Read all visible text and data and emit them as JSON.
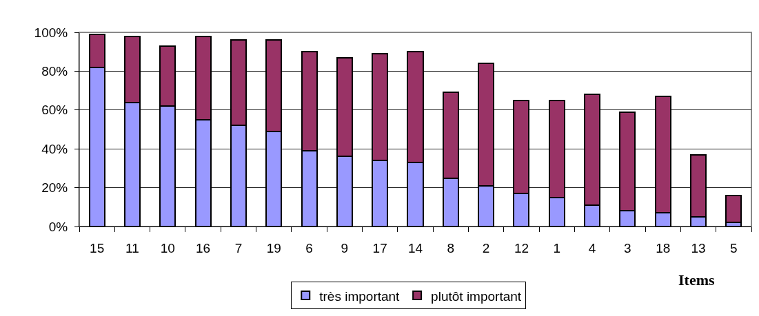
{
  "chart_data": {
    "type": "bar",
    "stacked": true,
    "xlabel": "Items",
    "categories": [
      "15",
      "11",
      "10",
      "16",
      "7",
      "19",
      "6",
      "9",
      "17",
      "14",
      "8",
      "2",
      "12",
      "1",
      "4",
      "3",
      "18",
      "13",
      "5"
    ],
    "series": [
      {
        "name": "très important",
        "color": "#9999ff",
        "values": [
          82,
          64,
          62,
          55,
          52,
          49,
          39,
          36,
          34,
          33,
          25,
          21,
          17,
          15,
          11,
          8,
          7,
          5,
          2
        ]
      },
      {
        "name": "plutôt important",
        "color": "#993366",
        "values": [
          17,
          34,
          31,
          43,
          44,
          47,
          51,
          51,
          55,
          57,
          44,
          63,
          48,
          50,
          57,
          51,
          60,
          32,
          14
        ]
      }
    ],
    "ylim": [
      0,
      100
    ],
    "yticks": [
      {
        "value": 0,
        "label": "0%"
      },
      {
        "value": 20,
        "label": "20%"
      },
      {
        "value": 40,
        "label": "40%"
      },
      {
        "value": 60,
        "label": "60%"
      },
      {
        "value": 80,
        "label": "80%"
      },
      {
        "value": 100,
        "label": "100%"
      }
    ],
    "grid": "y",
    "legend": "bottom"
  }
}
